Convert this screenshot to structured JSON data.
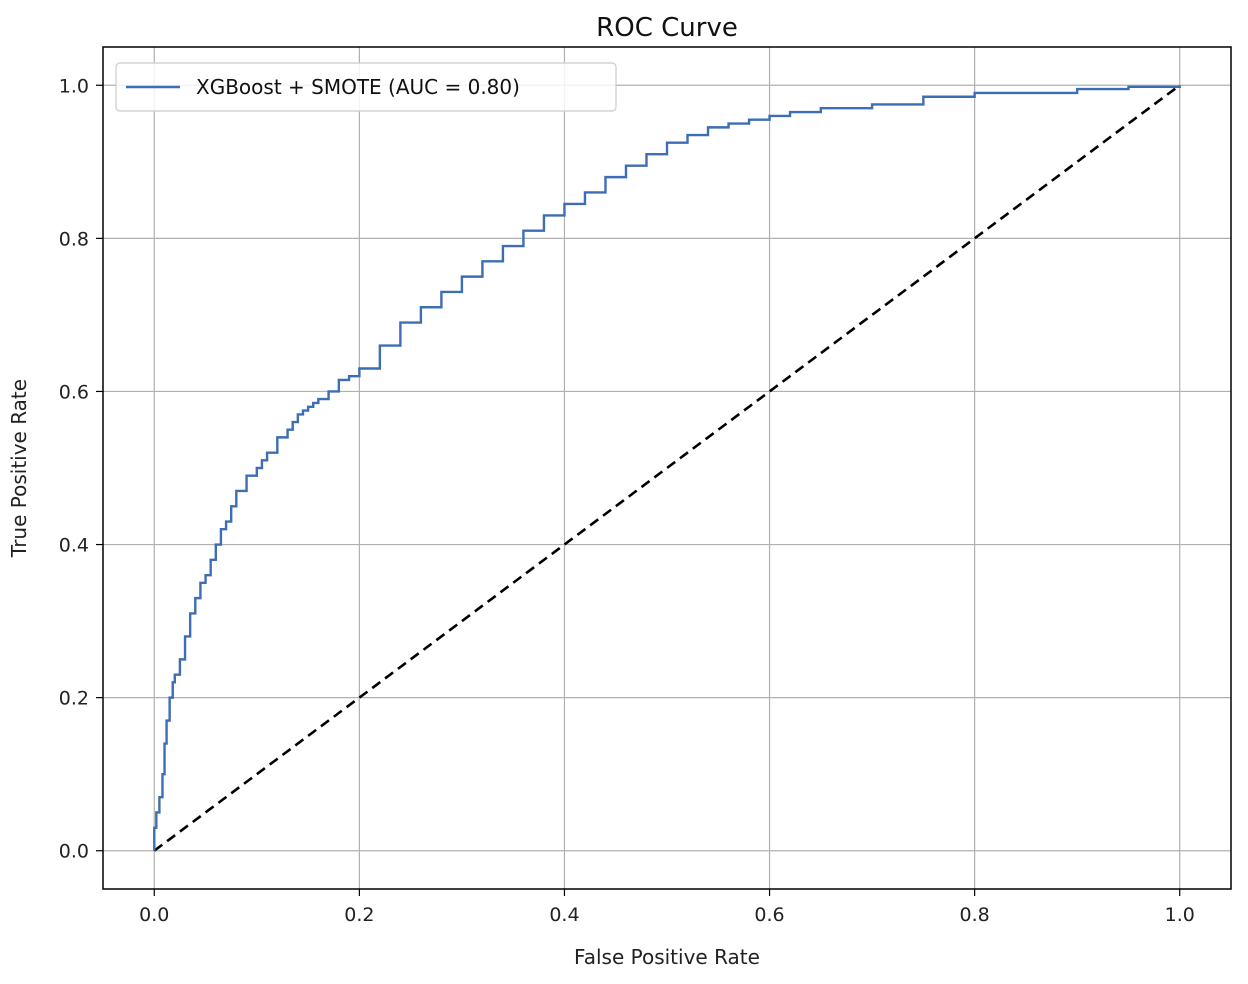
{
  "chart_data": {
    "type": "line",
    "title": "ROC Curve",
    "xlabel": "False Positive Rate",
    "ylabel": "True Positive Rate",
    "xlim": [
      -0.05,
      1.05
    ],
    "ylim": [
      -0.05,
      1.05
    ],
    "xticks": [
      0.0,
      0.2,
      0.4,
      0.6,
      0.8,
      1.0
    ],
    "yticks": [
      0.0,
      0.2,
      0.4,
      0.6,
      0.8,
      1.0
    ],
    "xtick_labels": [
      "0.0",
      "0.2",
      "0.4",
      "0.6",
      "0.8",
      "1.0"
    ],
    "ytick_labels": [
      "0.0",
      "0.2",
      "0.4",
      "0.6",
      "0.8",
      "1.0"
    ],
    "grid": true,
    "legend": "top-left",
    "series": [
      {
        "name": "XGBoost + SMOTE (AUC = 0.80)",
        "color": "#3d6db4",
        "style": "solid",
        "x": [
          0.0,
          0.0,
          0.002,
          0.005,
          0.008,
          0.01,
          0.012,
          0.015,
          0.018,
          0.02,
          0.025,
          0.03,
          0.035,
          0.04,
          0.045,
          0.05,
          0.055,
          0.06,
          0.065,
          0.07,
          0.075,
          0.08,
          0.09,
          0.1,
          0.105,
          0.11,
          0.12,
          0.13,
          0.135,
          0.14,
          0.145,
          0.15,
          0.155,
          0.16,
          0.17,
          0.18,
          0.19,
          0.2,
          0.22,
          0.24,
          0.26,
          0.28,
          0.3,
          0.32,
          0.34,
          0.36,
          0.38,
          0.4,
          0.42,
          0.44,
          0.46,
          0.48,
          0.5,
          0.52,
          0.54,
          0.56,
          0.58,
          0.6,
          0.62,
          0.65,
          0.7,
          0.75,
          0.8,
          0.85,
          0.9,
          0.95,
          1.0
        ],
        "y": [
          0.0,
          0.03,
          0.05,
          0.07,
          0.1,
          0.14,
          0.17,
          0.2,
          0.22,
          0.23,
          0.25,
          0.28,
          0.31,
          0.33,
          0.35,
          0.36,
          0.38,
          0.4,
          0.42,
          0.43,
          0.45,
          0.47,
          0.49,
          0.5,
          0.51,
          0.52,
          0.54,
          0.55,
          0.56,
          0.57,
          0.575,
          0.58,
          0.585,
          0.59,
          0.6,
          0.615,
          0.62,
          0.63,
          0.66,
          0.69,
          0.71,
          0.73,
          0.75,
          0.77,
          0.79,
          0.81,
          0.83,
          0.845,
          0.86,
          0.88,
          0.895,
          0.91,
          0.925,
          0.935,
          0.945,
          0.95,
          0.955,
          0.96,
          0.965,
          0.97,
          0.975,
          0.985,
          0.99,
          0.99,
          0.995,
          0.998,
          1.0
        ]
      },
      {
        "name": "",
        "color": "#000000",
        "style": "dashed",
        "x": [
          0.0,
          1.0
        ],
        "y": [
          0.0,
          1.0
        ]
      }
    ]
  }
}
